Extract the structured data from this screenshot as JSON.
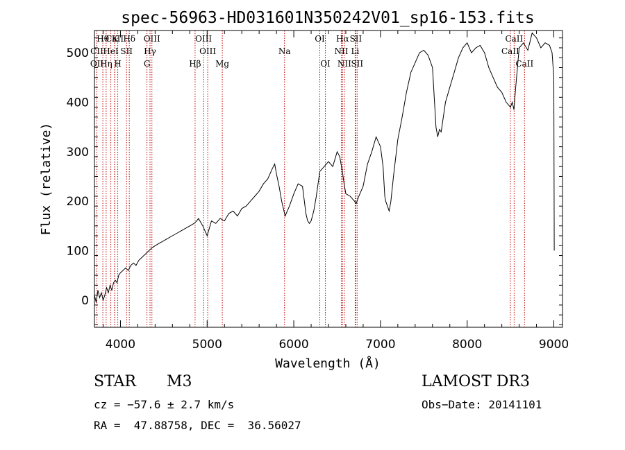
{
  "chart_data": {
    "type": "line",
    "title": "spec-56963-HD031601N350242V01_sp16-153.fits",
    "xlabel": "Wavelength (Å)",
    "ylabel": "Flux (relative)",
    "xlim": [
      3700,
      9100
    ],
    "ylim": [
      -55,
      545
    ],
    "xticks": [
      4000,
      5000,
      6000,
      7000,
      8000,
      9000
    ],
    "yticks": [
      0,
      100,
      200,
      300,
      400,
      500
    ],
    "grid": false,
    "series": [
      {
        "name": "flux",
        "x": [
          3700,
          3720,
          3740,
          3760,
          3780,
          3800,
          3820,
          3840,
          3860,
          3880,
          3900,
          3920,
          3940,
          3960,
          3980,
          4000,
          4030,
          4060,
          4090,
          4120,
          4150,
          4180,
          4210,
          4240,
          4270,
          4300,
          4330,
          4360,
          4400,
          4450,
          4500,
          4550,
          4600,
          4650,
          4700,
          4750,
          4800,
          4850,
          4880,
          4900,
          4950,
          5000,
          5050,
          5100,
          5150,
          5200,
          5250,
          5300,
          5350,
          5400,
          5450,
          5500,
          5550,
          5600,
          5650,
          5700,
          5750,
          5780,
          5800,
          5830,
          5860,
          5900,
          5950,
          6000,
          6050,
          6100,
          6140,
          6160,
          6180,
          6200,
          6230,
          6260,
          6300,
          6350,
          6400,
          6450,
          6500,
          6530,
          6560,
          6580,
          6600,
          6650,
          6700,
          6720,
          6750,
          6800,
          6850,
          6900,
          6950,
          7000,
          7030,
          7050,
          7060,
          7080,
          7100,
          7120,
          7150,
          7200,
          7250,
          7300,
          7350,
          7400,
          7450,
          7500,
          7550,
          7600,
          7620,
          7640,
          7660,
          7680,
          7700,
          7750,
          7800,
          7850,
          7900,
          7950,
          8000,
          8050,
          8100,
          8150,
          8200,
          8250,
          8300,
          8350,
          8400,
          8450,
          8500,
          8520,
          8540,
          8560,
          8580,
          8600,
          8650,
          8700,
          8750,
          8800,
          8850,
          8900,
          8950,
          8980,
          9000,
          9005
        ],
        "y": [
          10,
          -5,
          20,
          5,
          15,
          0,
          10,
          25,
          15,
          30,
          20,
          35,
          40,
          35,
          50,
          55,
          60,
          65,
          60,
          70,
          75,
          70,
          80,
          85,
          90,
          95,
          100,
          105,
          110,
          115,
          120,
          125,
          130,
          135,
          140,
          145,
          150,
          155,
          160,
          165,
          150,
          130,
          160,
          155,
          165,
          160,
          175,
          180,
          170,
          185,
          190,
          200,
          210,
          220,
          235,
          245,
          265,
          275,
          255,
          230,
          200,
          170,
          190,
          215,
          235,
          230,
          175,
          160,
          155,
          160,
          180,
          210,
          260,
          270,
          280,
          270,
          300,
          290,
          260,
          235,
          215,
          210,
          200,
          195,
          210,
          230,
          275,
          300,
          330,
          310,
          270,
          210,
          200,
          190,
          180,
          200,
          250,
          325,
          370,
          420,
          460,
          480,
          500,
          505,
          495,
          470,
          410,
          350,
          330,
          345,
          340,
          400,
          430,
          460,
          490,
          510,
          520,
          500,
          510,
          515,
          500,
          470,
          450,
          430,
          420,
          400,
          390,
          400,
          385,
          430,
          470,
          510,
          520,
          505,
          540,
          530,
          510,
          520,
          515,
          500,
          450,
          100
        ]
      }
    ],
    "line_markers": [
      {
        "label": "Hθ",
        "x": 3797,
        "row": 0
      },
      {
        "label": "CaII",
        "x": 3934,
        "row": 0
      },
      {
        "label": "K",
        "x": 3934,
        "row": 0
      },
      {
        "label": "Hδ",
        "x": 4102,
        "row": 0
      },
      {
        "label": "OIII",
        "x": 4363,
        "row": 0
      },
      {
        "label": "OIII",
        "x": 4959,
        "row": 0
      },
      {
        "label": "OI",
        "x": 6300,
        "row": 0
      },
      {
        "label": "Hα",
        "x": 6563,
        "row": 0
      },
      {
        "label": "SII",
        "x": 6716,
        "row": 0
      },
      {
        "label": "CaII",
        "x": 8542,
        "row": 0
      },
      {
        "label": "CII",
        "x": 3728,
        "row": 1
      },
      {
        "label": "HeI",
        "x": 3889,
        "row": 1
      },
      {
        "label": "SII",
        "x": 4070,
        "row": 1
      },
      {
        "label": "Hγ",
        "x": 4341,
        "row": 1
      },
      {
        "label": "OIII",
        "x": 5007,
        "row": 1
      },
      {
        "label": "Na",
        "x": 5893,
        "row": 1
      },
      {
        "label": "NII",
        "x": 6548,
        "row": 1
      },
      {
        "label": "Li",
        "x": 6708,
        "row": 1
      },
      {
        "label": "CaII",
        "x": 8498,
        "row": 1
      },
      {
        "label": "OII",
        "x": 3728,
        "row": 2
      },
      {
        "label": "Hη",
        "x": 3835,
        "row": 2
      },
      {
        "label": "H",
        "x": 3969,
        "row": 2
      },
      {
        "label": "G",
        "x": 4306,
        "row": 2
      },
      {
        "label": "Hβ",
        "x": 4861,
        "row": 2
      },
      {
        "label": "Mg",
        "x": 5175,
        "row": 2
      },
      {
        "label": "OI",
        "x": 6364,
        "row": 2
      },
      {
        "label": "NII",
        "x": 6583,
        "row": 2
      },
      {
        "label": "SII",
        "x": 6731,
        "row": 2
      },
      {
        "label": "CaII",
        "x": 8662,
        "row": 2
      }
    ]
  },
  "info": {
    "object_class": "STAR",
    "subclass": "M3",
    "survey": "LAMOST DR3",
    "redshift": "cz = −57.6 ± 2.7 km/s",
    "obs_date": "Obs−Date: 20141101",
    "coords": "RA =  47.88758, DEC =  36.56027"
  }
}
